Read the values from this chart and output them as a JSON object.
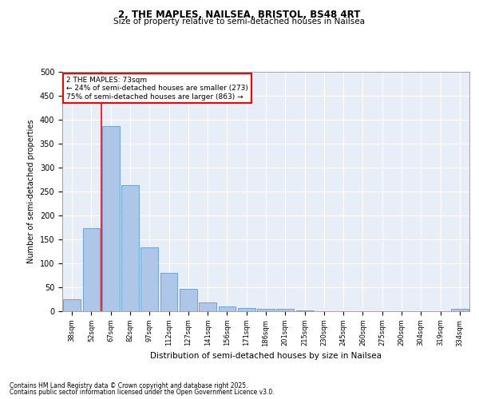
{
  "title1": "2, THE MAPLES, NAILSEA, BRISTOL, BS48 4RT",
  "title2": "Size of property relative to semi-detached houses in Nailsea",
  "xlabel": "Distribution of semi-detached houses by size in Nailsea",
  "ylabel": "Number of semi-detached properties",
  "categories": [
    "38sqm",
    "52sqm",
    "67sqm",
    "82sqm",
    "97sqm",
    "112sqm",
    "127sqm",
    "141sqm",
    "156sqm",
    "171sqm",
    "186sqm",
    "201sqm",
    "215sqm",
    "230sqm",
    "245sqm",
    "260sqm",
    "275sqm",
    "290sqm",
    "304sqm",
    "319sqm",
    "334sqm"
  ],
  "values": [
    25,
    174,
    387,
    264,
    133,
    80,
    47,
    19,
    10,
    6,
    5,
    5,
    2,
    0,
    0,
    0,
    0,
    0,
    0,
    0,
    5
  ],
  "bar_color": "#aec6e8",
  "bar_edge_color": "#5b9bd5",
  "vline_x": 1.5,
  "vline_color": "red",
  "annotation_title": "2 THE MAPLES: 73sqm",
  "annotation_line1": "← 24% of semi-detached houses are smaller (273)",
  "annotation_line2": "75% of semi-detached houses are larger (863) →",
  "annotation_box_color": "white",
  "annotation_box_edge": "red",
  "footnote1": "Contains HM Land Registry data © Crown copyright and database right 2025.",
  "footnote2": "Contains public sector information licensed under the Open Government Licence v3.0.",
  "bg_color": "#e8eef8",
  "ylim": [
    0,
    500
  ],
  "yticks": [
    0,
    50,
    100,
    150,
    200,
    250,
    300,
    350,
    400,
    450,
    500
  ]
}
